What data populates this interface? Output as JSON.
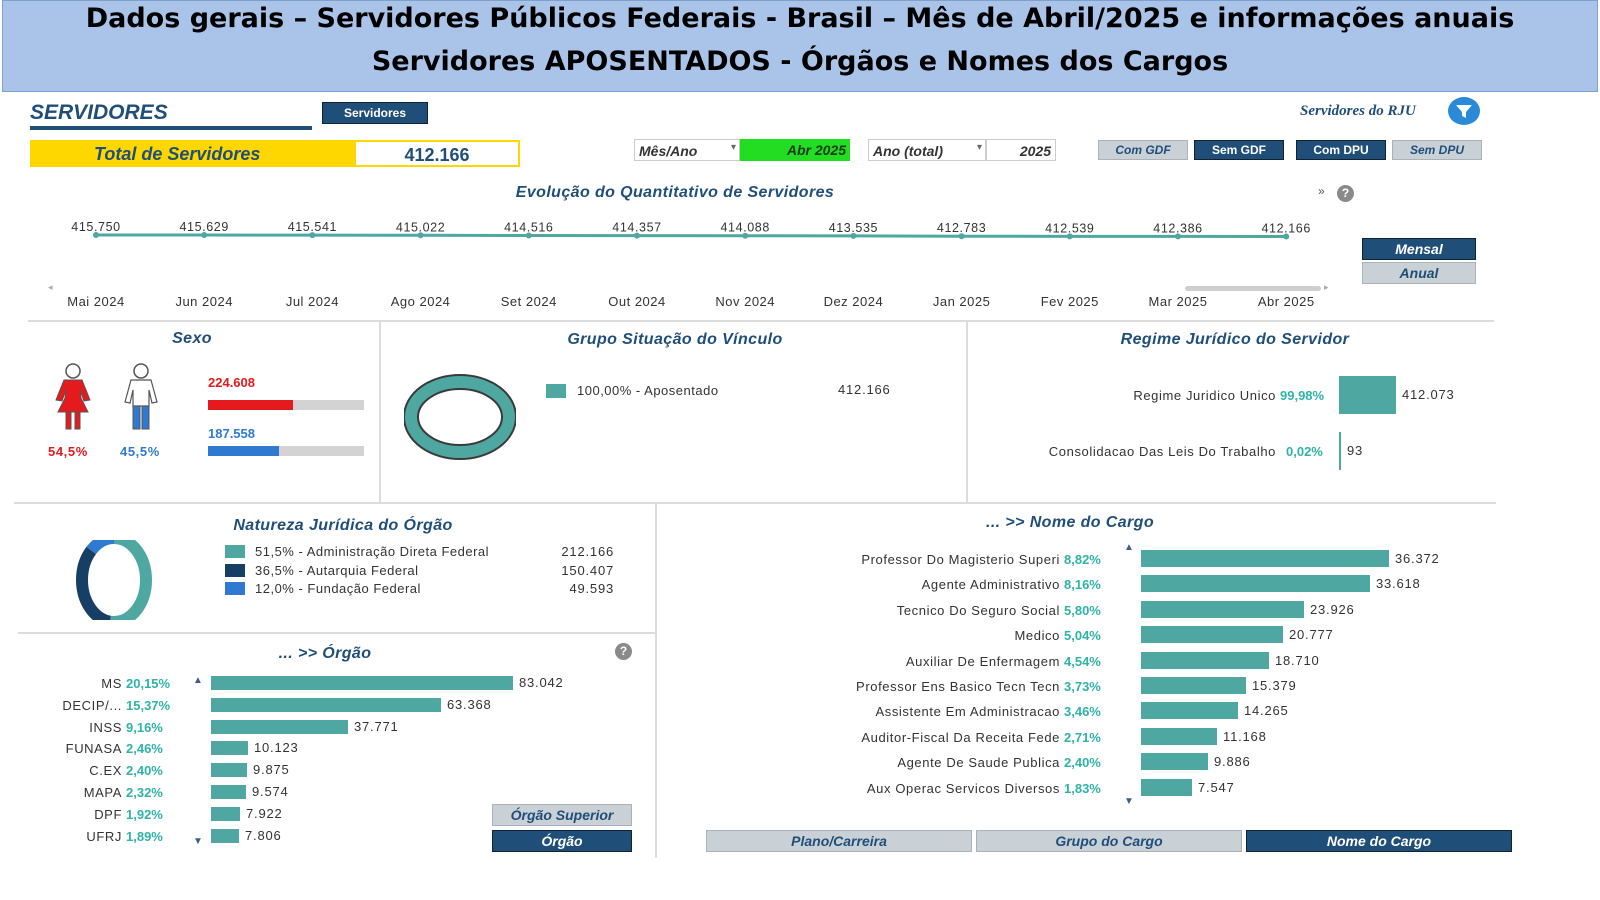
{
  "banner": {
    "line1": "Dados gerais – Servidores Públicos Federais - Brasil – Mês de Abril/2025 e informações anuais",
    "line2": "Servidores APOSENTADOS - Órgãos e Nomes dos Cargos"
  },
  "header": {
    "title": "SERVIDORES",
    "nav_button": "Servidores",
    "rju_label": "Servidores do RJU",
    "total_label": "Total de Servidores",
    "total_value": "412.166"
  },
  "filters": {
    "mes_ano_label": "Mês/Ano",
    "mes_ano_value": "Abr 2025",
    "ano_total_label": "Ano (total)",
    "ano_total_value": "2025",
    "buttons": [
      "Com GDF",
      "Sem GDF",
      "Com DPU",
      "Sem DPU"
    ]
  },
  "evolucao": {
    "title": "Evolução do Quantitativo de Servidores",
    "more": "»",
    "help": "?",
    "mensal": "Mensal",
    "anual": "Anual",
    "months": [
      "Mai 2024",
      "Jun 2024",
      "Jul 2024",
      "Ago 2024",
      "Set 2024",
      "Out 2024",
      "Nov 2024",
      "Dez 2024",
      "Jan 2025",
      "Fev 2025",
      "Mar 2025",
      "Abr 2025"
    ],
    "labels": [
      "415.750",
      "415.629",
      "415.541",
      "415.022",
      "414.516",
      "414.357",
      "414.088",
      "413.535",
      "412.783",
      "412.539",
      "412.386",
      "412.166"
    ],
    "values": [
      415750,
      415629,
      415541,
      415022,
      414516,
      414357,
      414088,
      413535,
      412783,
      412539,
      412386,
      412166
    ]
  },
  "sexo": {
    "title": "Sexo",
    "female_count": "224.608",
    "male_count": "187.558",
    "female_pct": "54,5%",
    "male_pct": "45,5%",
    "female_fraction": 0.545,
    "male_fraction": 0.455,
    "female_color": "#e41a1c",
    "male_color": "#2f7ad0"
  },
  "vinculo": {
    "title": "Grupo Situação do Vínculo",
    "legend": "100,00% - Aposentado",
    "value": "412.166"
  },
  "regime": {
    "title": "Regime Jurídico do Servidor",
    "rows": [
      {
        "label": "Regime Juridico Unico",
        "pct": "99,98%",
        "value": "412.073",
        "n": 412073
      },
      {
        "label": "Consolidacao Das Leis Do Trabalho",
        "pct": "0,02%",
        "value": "93",
        "n": 93
      }
    ]
  },
  "natureza": {
    "title": "Natureza Jurídica do Órgão",
    "items": [
      {
        "legend": "51,5% - Administração Direta Federal",
        "value": "212.166",
        "n": 212166,
        "color": "#4fa7a2"
      },
      {
        "legend": "36,5% - Autarquia Federal",
        "value": "150.407",
        "n": 150407,
        "color": "#173f66"
      },
      {
        "legend": "12,0% - Fundação Federal",
        "value": "49.593",
        "n": 49593,
        "color": "#2f7ad0"
      }
    ]
  },
  "orgao": {
    "title": "... >> Órgão",
    "help": "?",
    "btn_superior": "Órgão Superior",
    "btn_orgao": "Órgão",
    "rows": [
      {
        "label": "MS",
        "pct": "20,15%",
        "value": "83.042",
        "n": 83042
      },
      {
        "label": "DECIP/...",
        "pct": "15,37%",
        "value": "63.368",
        "n": 63368
      },
      {
        "label": "INSS",
        "pct": "9,16%",
        "value": "37.771",
        "n": 37771
      },
      {
        "label": "FUNASA",
        "pct": "2,46%",
        "value": "10.123",
        "n": 10123
      },
      {
        "label": "C.EX",
        "pct": "2,40%",
        "value": "9.875",
        "n": 9875
      },
      {
        "label": "MAPA",
        "pct": "2,32%",
        "value": "9.574",
        "n": 9574
      },
      {
        "label": "DPF",
        "pct": "1,92%",
        "value": "7.922",
        "n": 7922
      },
      {
        "label": "UFRJ",
        "pct": "1,89%",
        "value": "7.806",
        "n": 7806
      }
    ]
  },
  "cargo": {
    "title": "... >> Nome do Cargo",
    "tabs": [
      "Plano/Carreira",
      "Grupo do Cargo",
      "Nome do Cargo"
    ],
    "rows": [
      {
        "label": "Professor Do Magisterio Superi",
        "pct": "8,82%",
        "value": "36.372",
        "n": 36372
      },
      {
        "label": "Agente Administrativo",
        "pct": "8,16%",
        "value": "33.618",
        "n": 33618
      },
      {
        "label": "Tecnico Do Seguro Social",
        "pct": "5,80%",
        "value": "23.926",
        "n": 23926
      },
      {
        "label": "Medico",
        "pct": "5,04%",
        "value": "20.777",
        "n": 20777
      },
      {
        "label": "Auxiliar De Enfermagem",
        "pct": "4,54%",
        "value": "18.710",
        "n": 18710
      },
      {
        "label": "Professor Ens Basico Tecn Tecn",
        "pct": "3,73%",
        "value": "15.379",
        "n": 15379
      },
      {
        "label": "Assistente Em Administracao",
        "pct": "3,46%",
        "value": "14.265",
        "n": 14265
      },
      {
        "label": "Auditor-Fiscal Da Receita Fede",
        "pct": "2,71%",
        "value": "11.168",
        "n": 11168
      },
      {
        "label": "Agente De Saude Publica",
        "pct": "2,40%",
        "value": "9.886",
        "n": 9886
      },
      {
        "label": "Aux Operac Servicos Diversos",
        "pct": "1,83%",
        "value": "7.547",
        "n": 7547
      }
    ]
  }
}
